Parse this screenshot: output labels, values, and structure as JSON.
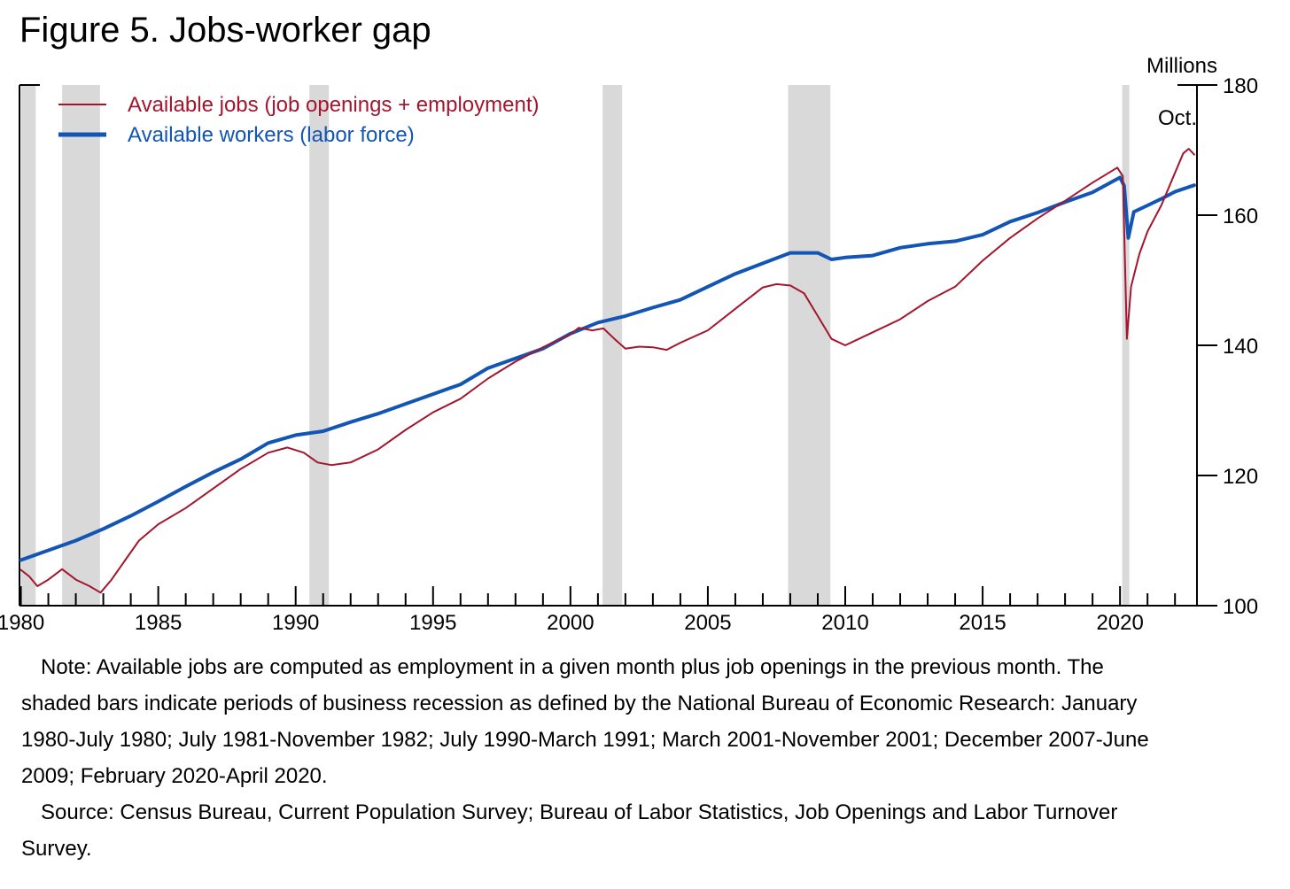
{
  "figure": {
    "title": "Figure 5. Jobs-worker gap"
  },
  "chart_data": {
    "type": "line",
    "title": "Figure 5. Jobs-worker gap",
    "xlabel": "",
    "ylabel": "Millions",
    "xlim": [
      1979.95,
      2022.8
    ],
    "ylim": [
      100,
      180
    ],
    "x_ticks": [
      1980,
      1985,
      1990,
      1995,
      2000,
      2005,
      2010,
      2015,
      2020
    ],
    "y_ticks": [
      100,
      120,
      140,
      160,
      180
    ],
    "grid": false,
    "legend_position": "top-left",
    "annotation": "Oct.",
    "colors": {
      "jobs": "#a3162e",
      "workers": "#1255b5",
      "recession": "#d9d9d9"
    },
    "recessions": [
      {
        "label": "January 1980-July 1980",
        "start": 1980.0,
        "end": 1980.54
      },
      {
        "label": "July 1981-November 1982",
        "start": 1981.5,
        "end": 1982.88
      },
      {
        "label": "July 1990-March 1991",
        "start": 1990.5,
        "end": 1991.21
      },
      {
        "label": "March 2001-November 2001",
        "start": 2001.17,
        "end": 2001.88
      },
      {
        "label": "December 2007-June 2009",
        "start": 2007.92,
        "end": 2009.46
      },
      {
        "label": "February 2020-April 2020",
        "start": 2020.08,
        "end": 2020.29
      }
    ],
    "series": [
      {
        "name": "Available jobs (job openings + employment)",
        "points": [
          [
            1980.0,
            105.5
          ],
          [
            1980.3,
            104.5
          ],
          [
            1980.6,
            103.0
          ],
          [
            1981.0,
            104.0
          ],
          [
            1981.5,
            105.6
          ],
          [
            1982.0,
            104.0
          ],
          [
            1982.5,
            103.0
          ],
          [
            1982.9,
            102.0
          ],
          [
            1983.3,
            104.0
          ],
          [
            1983.8,
            107.0
          ],
          [
            1984.3,
            110.0
          ],
          [
            1985.0,
            112.5
          ],
          [
            1986.0,
            115.0
          ],
          [
            1987.0,
            118.0
          ],
          [
            1988.0,
            121.0
          ],
          [
            1989.0,
            123.5
          ],
          [
            1989.7,
            124.3
          ],
          [
            1990.3,
            123.5
          ],
          [
            1990.8,
            122.0
          ],
          [
            1991.3,
            121.6
          ],
          [
            1992.0,
            122.0
          ],
          [
            1993.0,
            124.0
          ],
          [
            1994.0,
            127.0
          ],
          [
            1995.0,
            129.7
          ],
          [
            1996.0,
            131.8
          ],
          [
            1997.0,
            134.9
          ],
          [
            1998.0,
            137.5
          ],
          [
            1999.0,
            139.7
          ],
          [
            2000.0,
            141.7
          ],
          [
            2000.3,
            142.7
          ],
          [
            2000.8,
            142.3
          ],
          [
            2001.2,
            142.6
          ],
          [
            2001.6,
            141.0
          ],
          [
            2002.0,
            139.5
          ],
          [
            2002.5,
            139.8
          ],
          [
            2003.0,
            139.7
          ],
          [
            2003.5,
            139.3
          ],
          [
            2004.0,
            140.4
          ],
          [
            2005.0,
            142.3
          ],
          [
            2006.0,
            145.6
          ],
          [
            2007.0,
            148.9
          ],
          [
            2007.5,
            149.4
          ],
          [
            2008.0,
            149.2
          ],
          [
            2008.5,
            148.0
          ],
          [
            2009.0,
            144.5
          ],
          [
            2009.5,
            141.0
          ],
          [
            2010.0,
            140.0
          ],
          [
            2010.5,
            141.0
          ],
          [
            2011.0,
            142.0
          ],
          [
            2012.0,
            144.0
          ],
          [
            2013.0,
            146.8
          ],
          [
            2014.0,
            149.0
          ],
          [
            2015.0,
            153.0
          ],
          [
            2016.0,
            156.5
          ],
          [
            2017.0,
            159.5
          ],
          [
            2018.0,
            162.2
          ],
          [
            2019.0,
            165.0
          ],
          [
            2019.9,
            167.3
          ],
          [
            2020.1,
            166.0
          ],
          [
            2020.25,
            141.0
          ],
          [
            2020.4,
            149.0
          ],
          [
            2020.7,
            154.0
          ],
          [
            2021.0,
            157.5
          ],
          [
            2021.5,
            161.5
          ],
          [
            2022.0,
            166.5
          ],
          [
            2022.3,
            169.5
          ],
          [
            2022.5,
            170.2
          ],
          [
            2022.7,
            169.3
          ]
        ]
      },
      {
        "name": "Available workers (labor force)",
        "points": [
          [
            1980.0,
            107.0
          ],
          [
            1981.0,
            108.5
          ],
          [
            1982.0,
            110.0
          ],
          [
            1983.0,
            111.8
          ],
          [
            1984.0,
            113.8
          ],
          [
            1985.0,
            116.0
          ],
          [
            1986.0,
            118.3
          ],
          [
            1987.0,
            120.5
          ],
          [
            1988.0,
            122.5
          ],
          [
            1989.0,
            125.0
          ],
          [
            1990.0,
            126.2
          ],
          [
            1991.0,
            126.8
          ],
          [
            1992.0,
            128.2
          ],
          [
            1993.0,
            129.5
          ],
          [
            1994.0,
            131.0
          ],
          [
            1995.0,
            132.5
          ],
          [
            1996.0,
            134.0
          ],
          [
            1997.0,
            136.5
          ],
          [
            1998.0,
            138.0
          ],
          [
            1999.0,
            139.5
          ],
          [
            2000.0,
            141.8
          ],
          [
            2001.0,
            143.5
          ],
          [
            2002.0,
            144.5
          ],
          [
            2003.0,
            145.8
          ],
          [
            2004.0,
            147.0
          ],
          [
            2005.0,
            149.0
          ],
          [
            2006.0,
            151.0
          ],
          [
            2007.0,
            152.6
          ],
          [
            2008.0,
            154.2
          ],
          [
            2009.0,
            154.2
          ],
          [
            2009.5,
            153.2
          ],
          [
            2010.0,
            153.5
          ],
          [
            2011.0,
            153.8
          ],
          [
            2012.0,
            155.0
          ],
          [
            2013.0,
            155.6
          ],
          [
            2014.0,
            156.0
          ],
          [
            2015.0,
            157.0
          ],
          [
            2016.0,
            159.0
          ],
          [
            2017.0,
            160.4
          ],
          [
            2018.0,
            162.0
          ],
          [
            2019.0,
            163.5
          ],
          [
            2020.0,
            165.8
          ],
          [
            2020.15,
            164.5
          ],
          [
            2020.3,
            156.5
          ],
          [
            2020.5,
            160.5
          ],
          [
            2021.0,
            161.5
          ],
          [
            2021.5,
            162.5
          ],
          [
            2022.0,
            163.6
          ],
          [
            2022.7,
            164.6
          ]
        ]
      }
    ]
  },
  "notes": {
    "note": "Note: Available jobs are computed as employment in a given month plus job openings in the previous month. The shaded bars indicate periods of business recession as defined by the National Bureau of Economic Research: January 1980-July 1980; July 1981-November 1982; July 1990-March 1991; March 2001-November 2001; December 2007-June 2009; February 2020-April 2020.",
    "source": "Source: Census Bureau, Current Population Survey; Bureau of Labor Statistics, Job Openings and Labor Turnover Survey."
  }
}
